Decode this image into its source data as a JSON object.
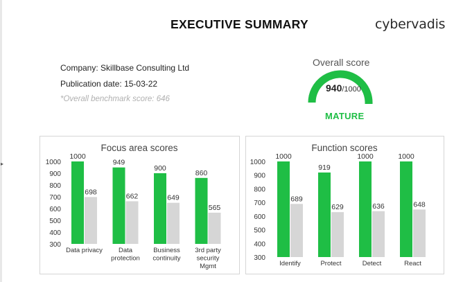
{
  "header": {
    "title": "EXECUTIVE SUMMARY",
    "logo_text": "cybervadis"
  },
  "company_info": {
    "company": "Company: Skillbase Consulting Ltd",
    "publication_date": "Publication date: 15-03-22",
    "benchmark_note": "*Overall benchmark score: 646"
  },
  "overall_score": {
    "label": "Overall score",
    "value": "940",
    "max": "/1000",
    "fraction": 0.94,
    "maturity": "MATURE",
    "accent_color": "#1fbe45",
    "track_color": "#d6d6d6"
  },
  "colors": {
    "company": "#1fbe45",
    "benchmark": "#d6d6d6"
  },
  "chart_data": [
    {
      "type": "bar",
      "title": "Focus area scores",
      "categories": [
        [
          "Data privacy"
        ],
        [
          "Data",
          "protection"
        ],
        [
          "Business",
          "continuity"
        ],
        [
          "3rd party",
          "security",
          "Mgmt"
        ]
      ],
      "series": [
        {
          "values": [
            1000,
            949,
            900,
            860
          ]
        },
        {
          "values": [
            698,
            662,
            649,
            565
          ]
        }
      ],
      "yticks": [
        "1000",
        "900",
        "800",
        "700",
        "600",
        "500",
        "400",
        "300"
      ],
      "ylim": [
        300,
        1000
      ]
    },
    {
      "type": "bar",
      "title": "Function scores",
      "categories": [
        [
          "Identify"
        ],
        [
          "Protect"
        ],
        [
          "Detect"
        ],
        [
          "React"
        ]
      ],
      "series": [
        {
          "values": [
            1000,
            919,
            1000,
            1000
          ]
        },
        {
          "values": [
            689,
            629,
            636,
            648
          ]
        }
      ],
      "yticks": [
        "1000",
        "900",
        "800",
        "700",
        "600",
        "500",
        "400",
        "300"
      ],
      "ylim": [
        300,
        1000
      ]
    }
  ]
}
